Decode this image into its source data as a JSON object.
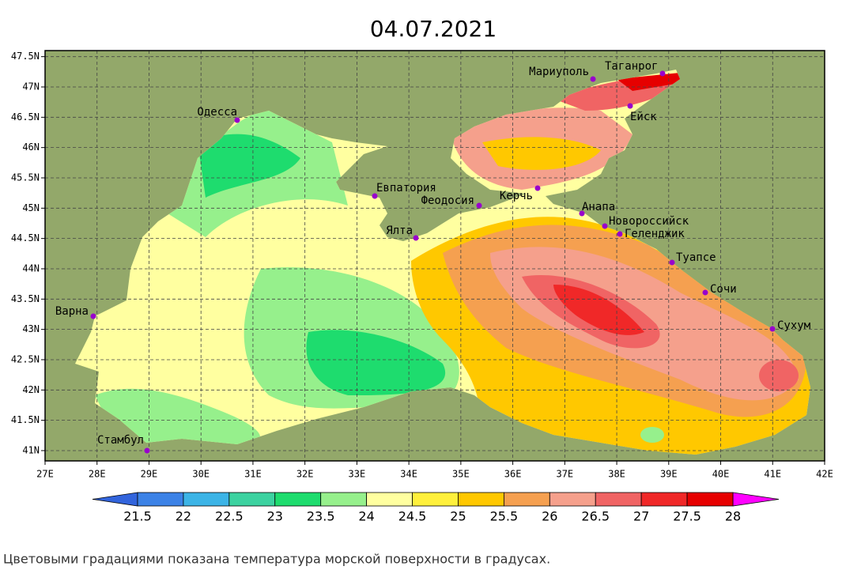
{
  "title": "04.07.2021",
  "map": {
    "xlim": [
      27,
      42
    ],
    "ylim": [
      40.83,
      47.6
    ],
    "grid": true,
    "land_color": "#93a86a",
    "xticks": [
      {
        "value": 27,
        "label": "27E"
      },
      {
        "value": 28,
        "label": "28E"
      },
      {
        "value": 29,
        "label": "29E"
      },
      {
        "value": 30,
        "label": "30E"
      },
      {
        "value": 31,
        "label": "31E"
      },
      {
        "value": 32,
        "label": "32E"
      },
      {
        "value": 33,
        "label": "33E"
      },
      {
        "value": 34,
        "label": "34E"
      },
      {
        "value": 35,
        "label": "35E"
      },
      {
        "value": 36,
        "label": "36E"
      },
      {
        "value": 37,
        "label": "37E"
      },
      {
        "value": 38,
        "label": "38E"
      },
      {
        "value": 39,
        "label": "39E"
      },
      {
        "value": 40,
        "label": "40E"
      },
      {
        "value": 41,
        "label": "41E"
      },
      {
        "value": 42,
        "label": "42E"
      }
    ],
    "yticks": [
      {
        "value": 41,
        "label": "41N"
      },
      {
        "value": 41.5,
        "label": "41.5N"
      },
      {
        "value": 42,
        "label": "42N"
      },
      {
        "value": 42.5,
        "label": "42.5N"
      },
      {
        "value": 43,
        "label": "43N"
      },
      {
        "value": 43.5,
        "label": "43.5N"
      },
      {
        "value": 44,
        "label": "44N"
      },
      {
        "value": 44.5,
        "label": "44.5N"
      },
      {
        "value": 45,
        "label": "45N"
      },
      {
        "value": 45.5,
        "label": "45.5N"
      },
      {
        "value": 46,
        "label": "46N"
      },
      {
        "value": 46.5,
        "label": "46.5N"
      },
      {
        "value": 47,
        "label": "47N"
      },
      {
        "value": 47.5,
        "label": "47.5N"
      }
    ],
    "cities": [
      "Одесса",
      "Евпатория",
      "Феодосия",
      "Ялта",
      "Керчь",
      "Анапа",
      "Новороссийск",
      "Геленджик",
      "Туапсе",
      "Сочи",
      "Сухум",
      "Варна",
      "Стамбул",
      "Мариуполь",
      "Таганрог",
      "Ейск"
    ]
  },
  "colorbar": {
    "ticks": [
      21.5,
      22,
      22.5,
      23,
      23.5,
      24,
      24.5,
      25,
      25.5,
      26,
      26.5,
      27,
      27.5,
      28
    ],
    "colors": [
      "#3c82e6",
      "#3cb4e6",
      "#3cd2a0",
      "#1edc6e",
      "#96f08c",
      "#ffffa0",
      "#fff03c",
      "#ffc800",
      "#f5a050",
      "#f5a08c",
      "#f06464",
      "#f02828",
      "#e60000"
    ],
    "under_color": "#3264dc",
    "over_color": "#ff00ff"
  },
  "caption": "Цветовыми градациями показана температура морской поверхности в градусах."
}
